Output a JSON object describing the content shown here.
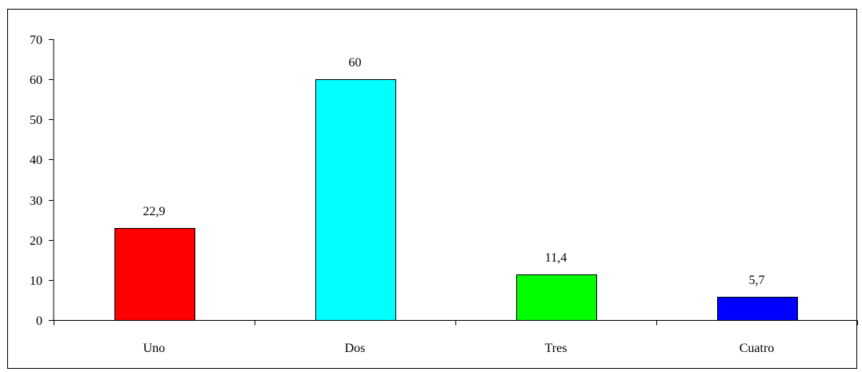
{
  "chart_data": {
    "type": "bar",
    "categories": [
      "Uno",
      "Dos",
      "Tres",
      "Cuatro"
    ],
    "values": [
      22.9,
      60,
      11.4,
      5.7
    ],
    "value_labels": [
      "22,9",
      "60",
      "11,4",
      "5,7"
    ],
    "colors": [
      "#ff0000",
      "#00ffff",
      "#00ff00",
      "#0000ff"
    ],
    "ylim": [
      0,
      70
    ],
    "yticks": [
      0,
      10,
      20,
      30,
      40,
      50,
      60,
      70
    ],
    "title": "",
    "xlabel": "",
    "ylabel": "",
    "grid": false,
    "legend": "none"
  }
}
